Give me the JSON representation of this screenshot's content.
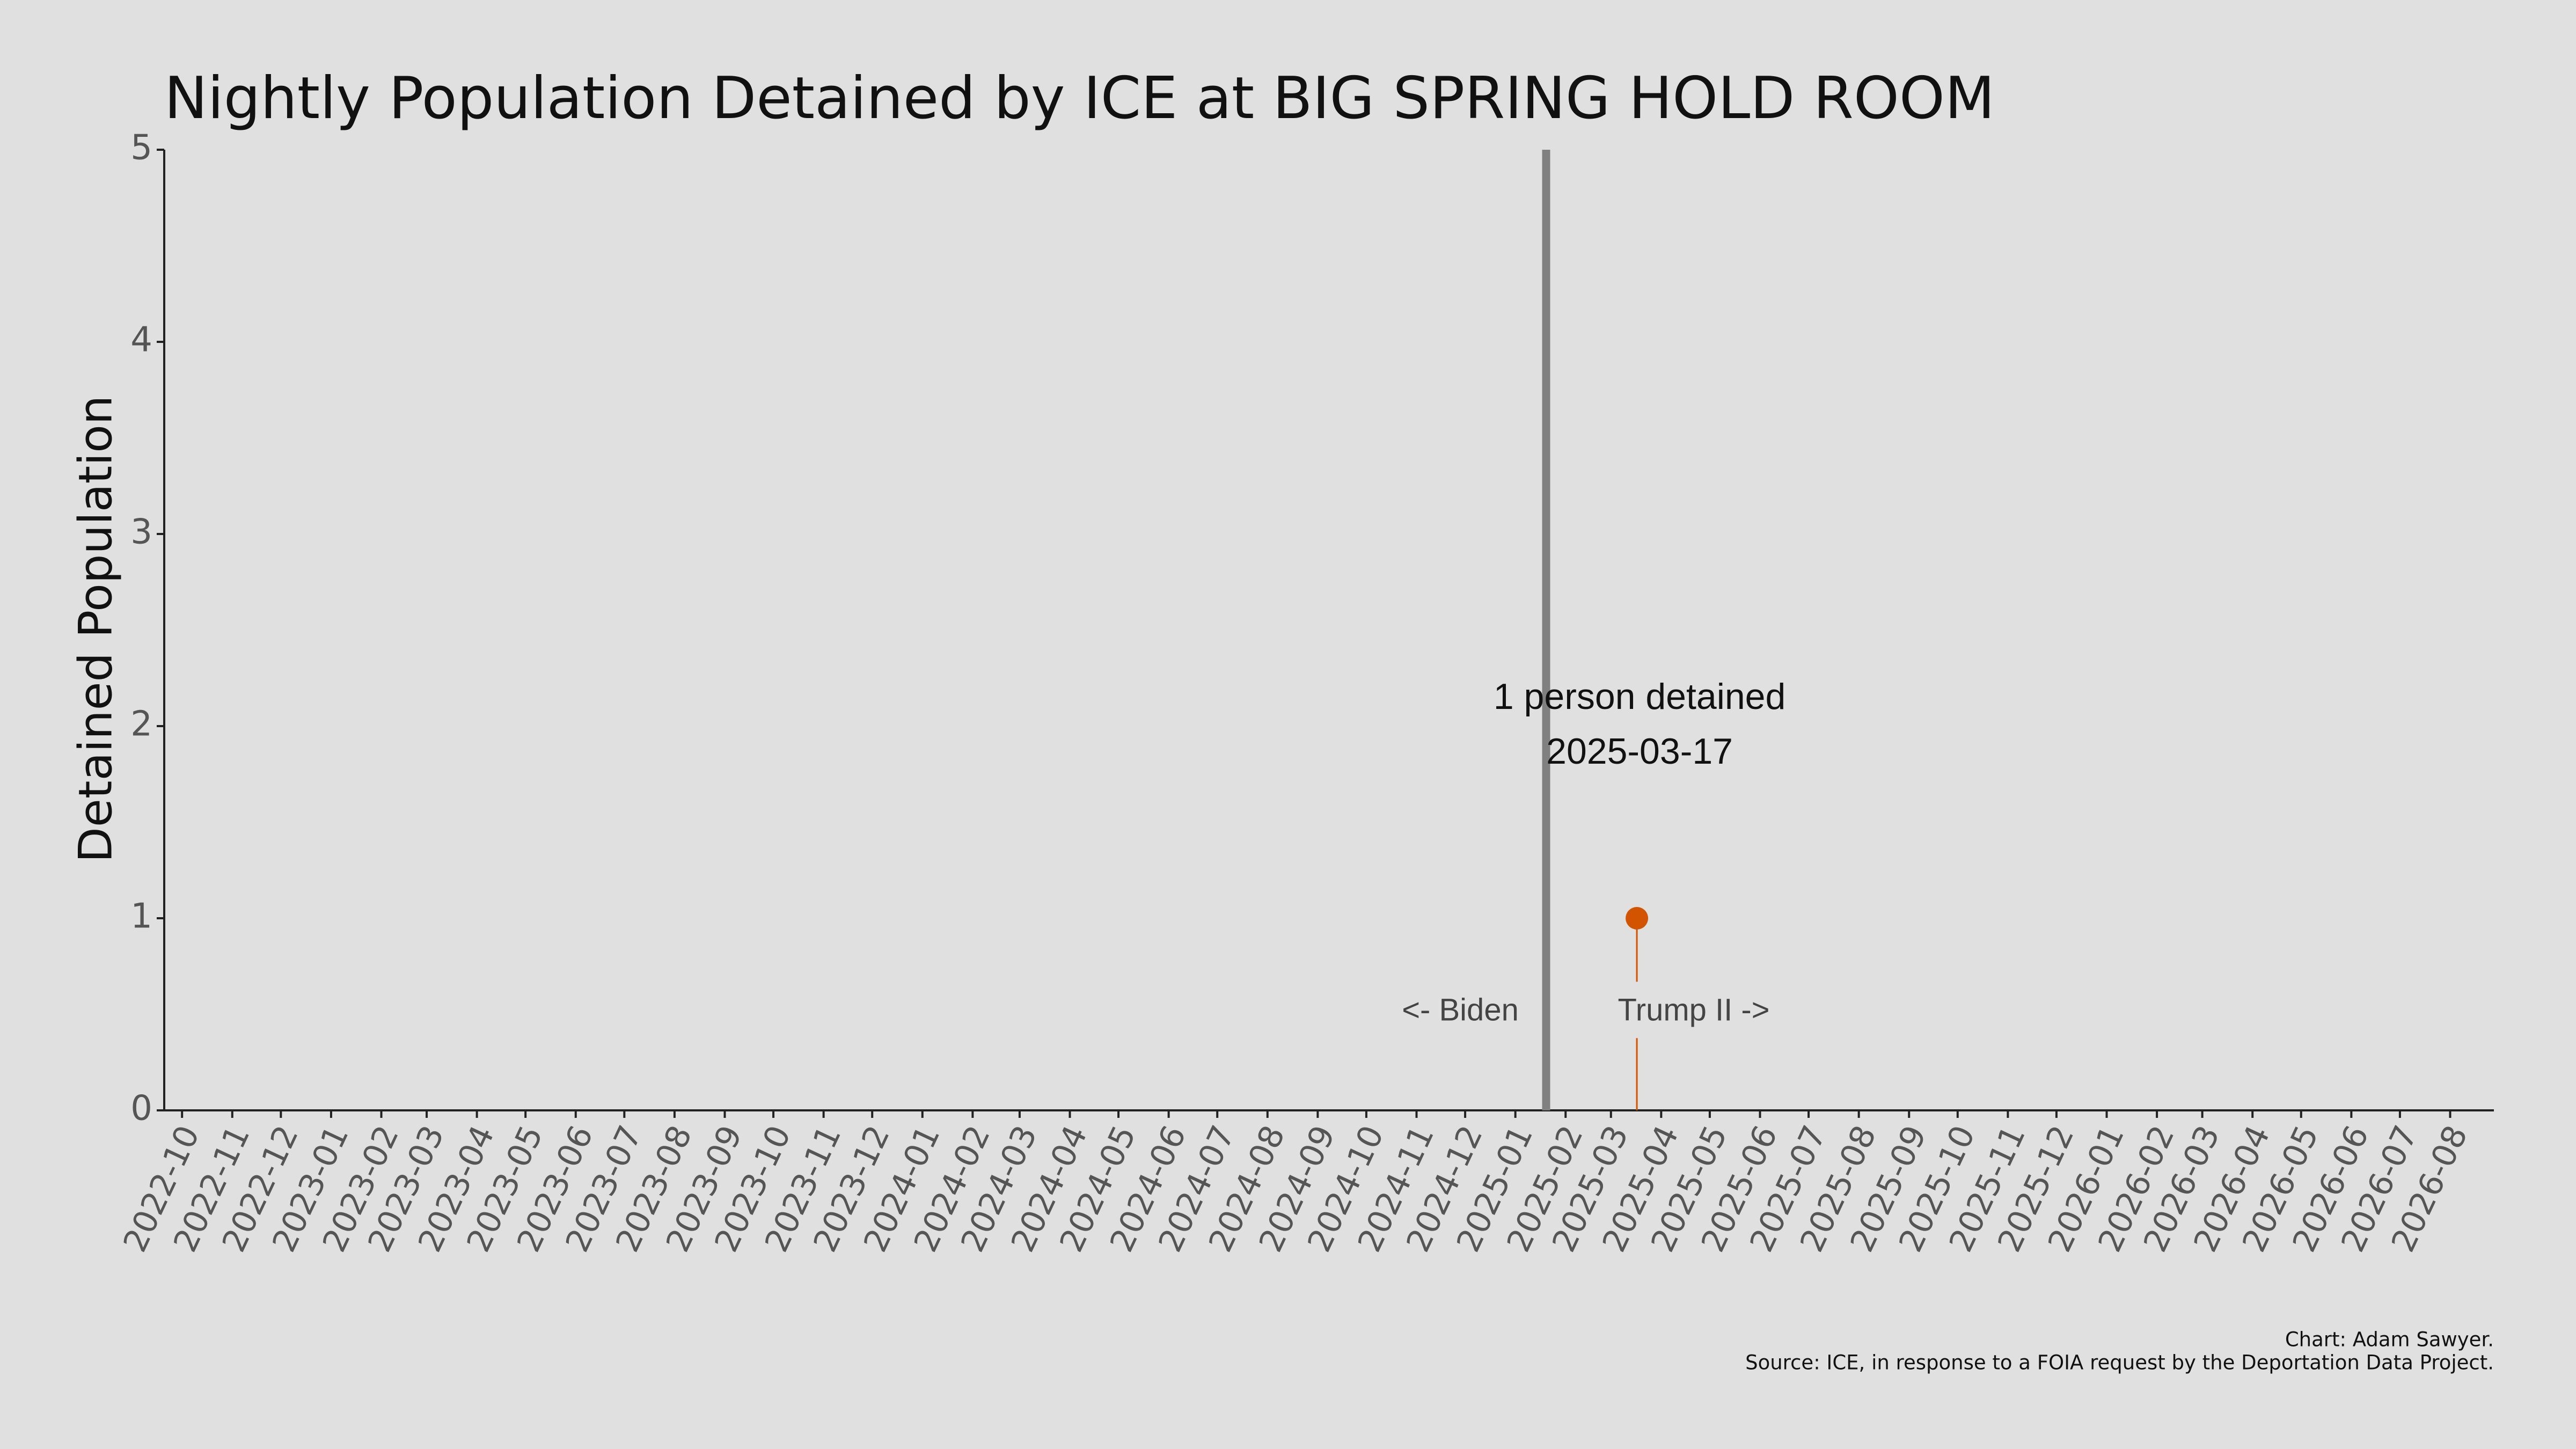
{
  "chart_data": {
    "type": "lollipop",
    "title": "Nightly Population Detained by ICE at BIG SPRING HOLD ROOM",
    "y_label": "Detained Population",
    "x": [
      "2025-03-17"
    ],
    "values": [
      1
    ],
    "color": "#d35400",
    "point_annotation": "1 person detained",
    "divider": {
      "x": "2025-01-20",
      "color": "#808080",
      "left_label": "<- Biden",
      "right_label": "Trump II ->"
    },
    "xlim": [
      "2022-09-20",
      "2026-08-28"
    ],
    "xticks": [
      "2022-10",
      "2022-11",
      "2022-12",
      "2023-01",
      "2023-02",
      "2023-03",
      "2023-04",
      "2023-05",
      "2023-06",
      "2023-07",
      "2023-08",
      "2023-09",
      "2023-10",
      "2023-11",
      "2023-12",
      "2024-01",
      "2024-02",
      "2024-03",
      "2024-04",
      "2024-05",
      "2024-06",
      "2024-07",
      "2024-08",
      "2024-09",
      "2024-10",
      "2024-11",
      "2024-12",
      "2025-01",
      "2025-02",
      "2025-03",
      "2025-04",
      "2025-05",
      "2025-06",
      "2025-07",
      "2025-08",
      "2025-09",
      "2025-10",
      "2025-11",
      "2025-12",
      "2026-01",
      "2026-02",
      "2026-03",
      "2026-04",
      "2026-05",
      "2026-06",
      "2026-07",
      "2026-08"
    ],
    "ylim": [
      0,
      5
    ],
    "yticks": [
      0,
      1,
      2,
      3,
      4,
      5
    ],
    "credit": "Chart: Adam Sawyer.",
    "source": "Source: ICE, in response to a FOIA request by the Deportation Data Project."
  }
}
